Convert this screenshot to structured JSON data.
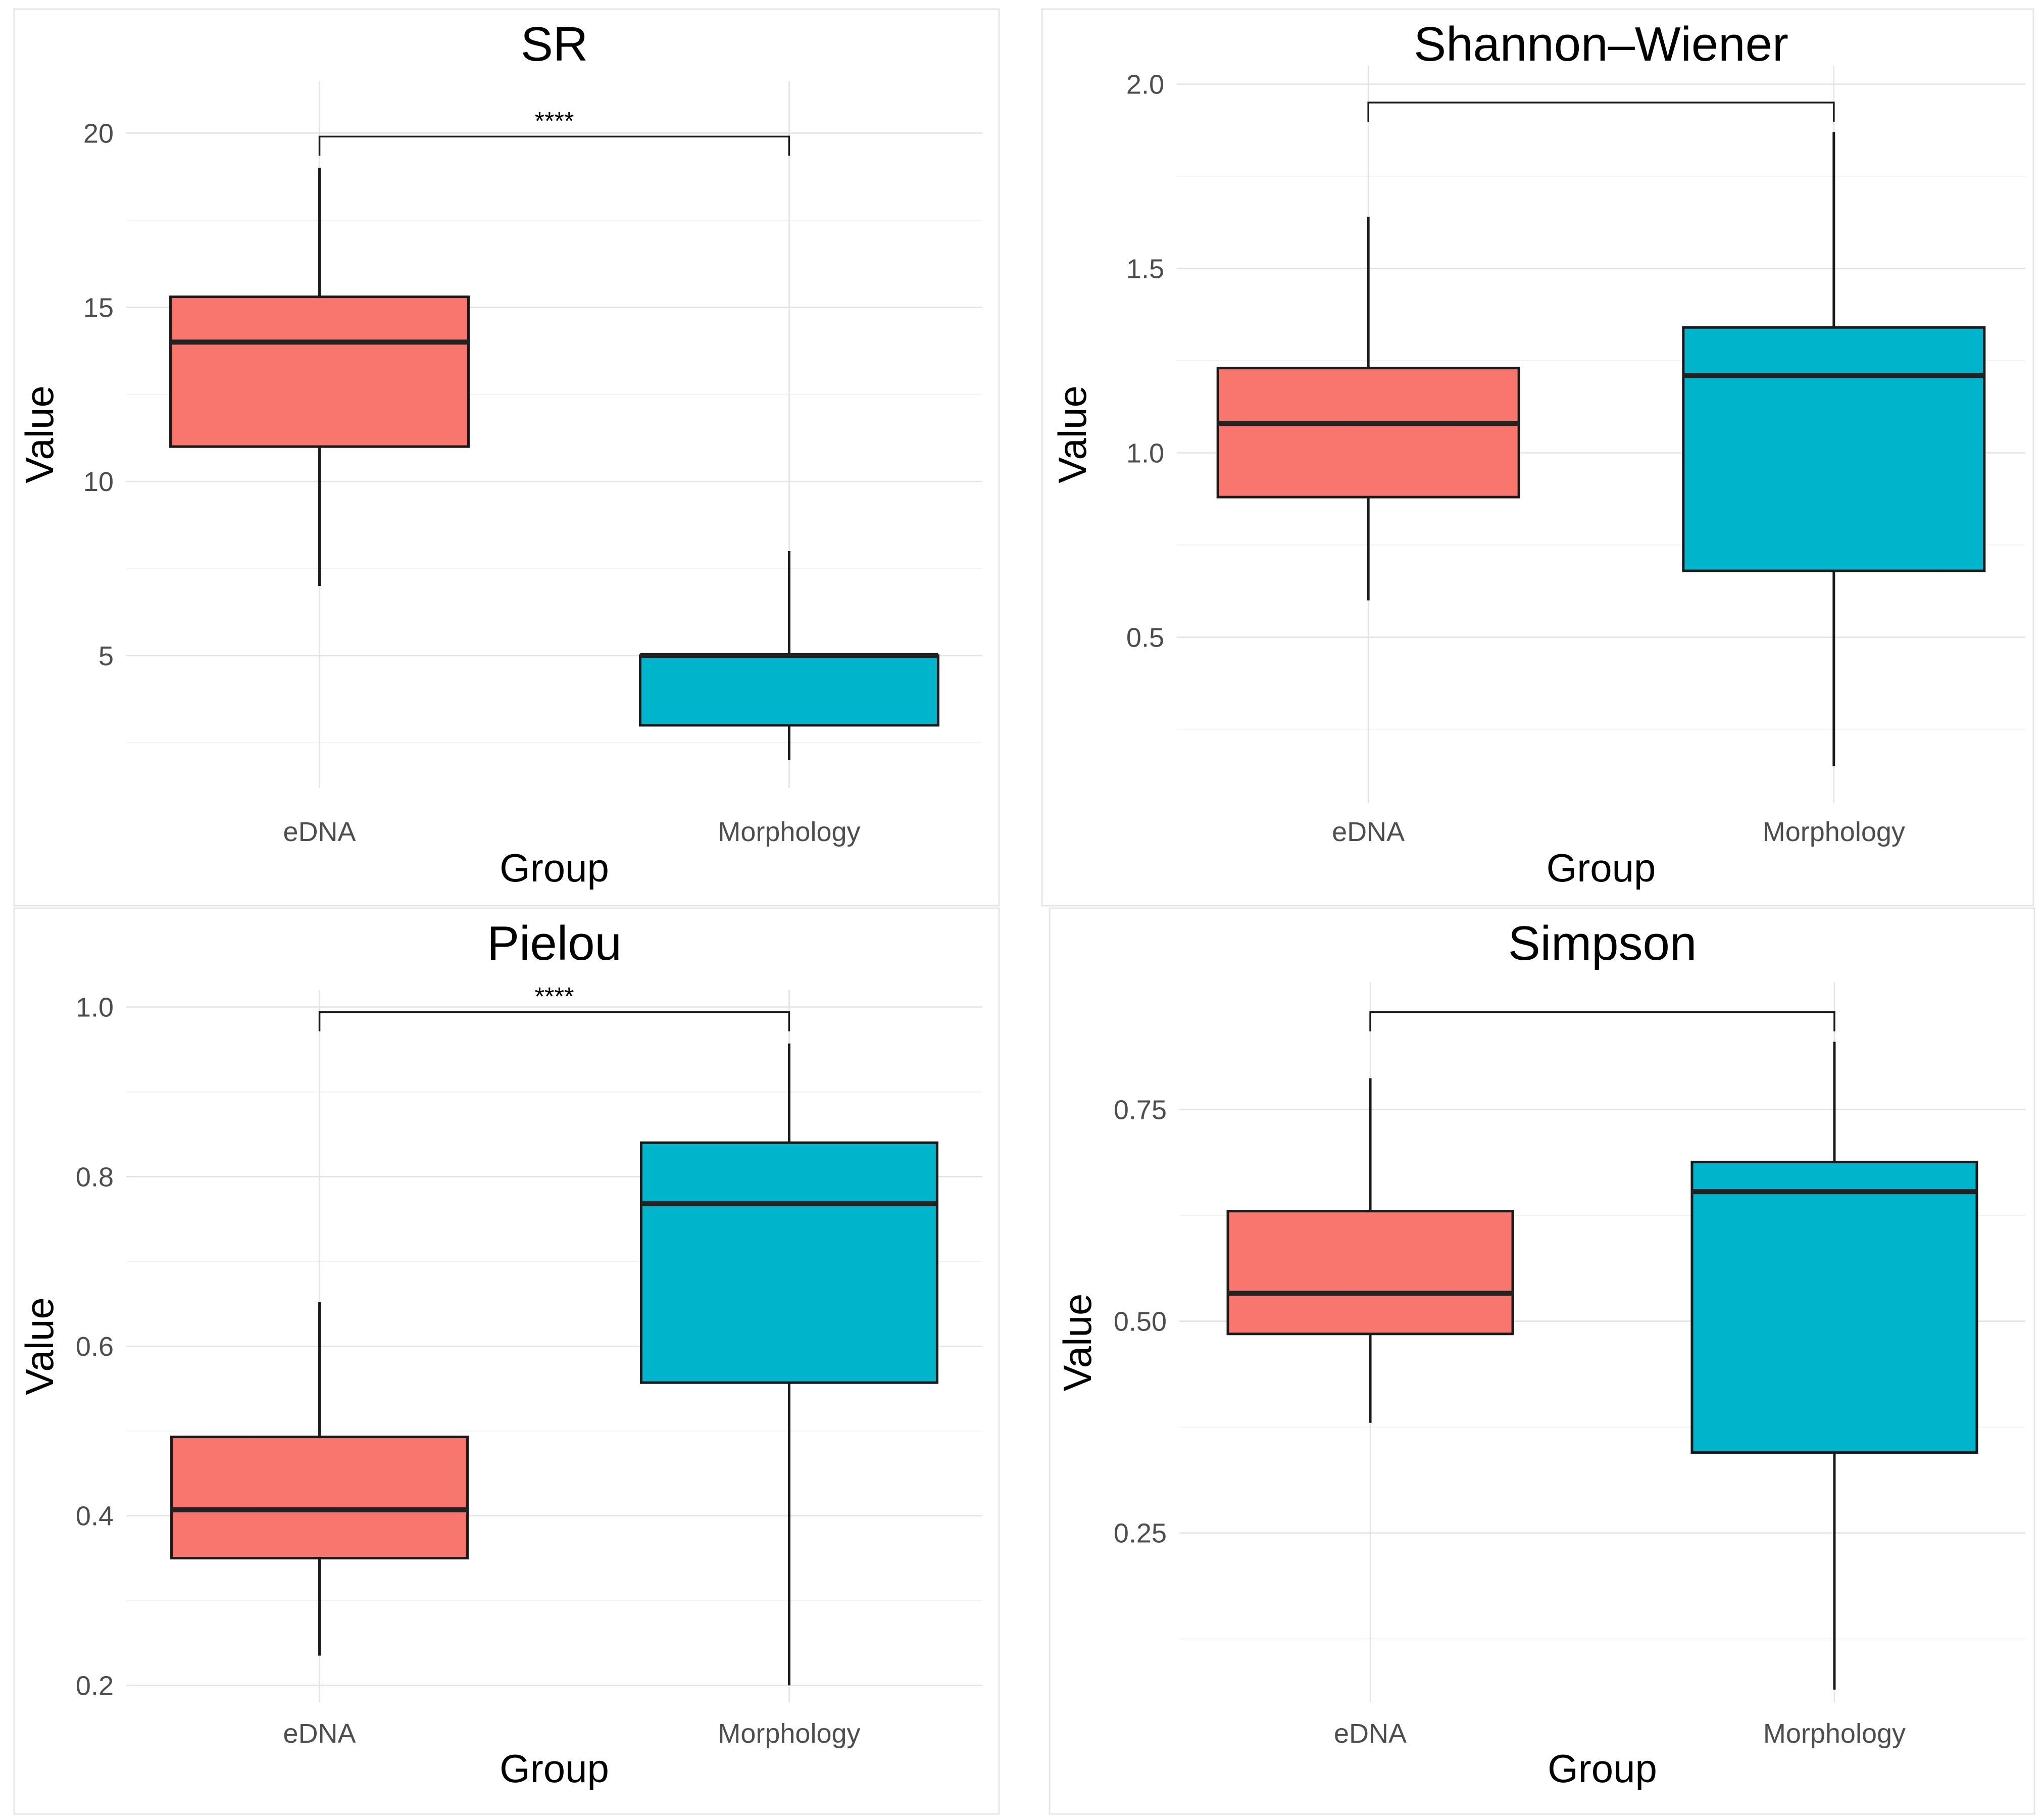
{
  "figure": {
    "colors": {
      "edna": "#f8766d",
      "morphology": "#00b4cc"
    }
  },
  "chart_data": [
    {
      "type": "boxplot",
      "title": "SR",
      "xlabel": "Group",
      "ylabel": "Value",
      "categories": [
        "eDNA",
        "Morphology"
      ],
      "ylim": [
        1.2,
        21.5
      ],
      "yticks": [
        5,
        10,
        15,
        20
      ],
      "yticklabels": [
        "5",
        "10",
        "15",
        "20"
      ],
      "minor_yticks": [
        2.5,
        7.5,
        12.5,
        17.5
      ],
      "boxes": [
        {
          "group": "eDNA",
          "min": 7,
          "q1": 11,
          "median": 14,
          "q3": 15.3,
          "max": 19
        },
        {
          "group": "Morphology",
          "min": 2,
          "q1": 3,
          "median": 5,
          "q3": 5,
          "max": 8
        }
      ],
      "comparison": {
        "level": 19.9,
        "label": "****"
      }
    },
    {
      "type": "boxplot",
      "title": "Shannon–Wiener",
      "xlabel": "Group",
      "ylabel": "Value",
      "categories": [
        "eDNA",
        "Morphology"
      ],
      "ylim": [
        0.05,
        2.05
      ],
      "yticks": [
        0.5,
        1.0,
        1.5,
        2.0
      ],
      "yticklabels": [
        "0.5",
        "1.0",
        "1.5",
        "2.0"
      ],
      "minor_yticks": [
        0.25,
        0.75,
        1.25,
        1.75
      ],
      "boxes": [
        {
          "group": "eDNA",
          "min": 0.6,
          "q1": 0.88,
          "median": 1.08,
          "q3": 1.23,
          "max": 1.64
        },
        {
          "group": "Morphology",
          "min": 0.15,
          "q1": 0.68,
          "median": 1.21,
          "q3": 1.34,
          "max": 1.87
        }
      ],
      "comparison": {
        "level": 1.95,
        "label": ""
      }
    },
    {
      "type": "boxplot",
      "title": "Pielou",
      "xlabel": "Group",
      "ylabel": "Value",
      "categories": [
        "eDNA",
        "Morphology"
      ],
      "ylim": [
        0.18,
        1.02
      ],
      "yticks": [
        0.2,
        0.4,
        0.6,
        0.8,
        1.0
      ],
      "yticklabels": [
        "0.2",
        "0.4",
        "0.6",
        "0.8",
        "1.0"
      ],
      "minor_yticks": [
        0.3,
        0.5,
        0.7,
        0.9
      ],
      "boxes": [
        {
          "group": "eDNA",
          "min": 0.235,
          "q1": 0.35,
          "median": 0.407,
          "q3": 0.493,
          "max": 0.652
        },
        {
          "group": "Morphology",
          "min": 0.2,
          "q1": 0.557,
          "median": 0.768,
          "q3": 0.84,
          "max": 0.957
        }
      ],
      "comparison": {
        "level": 0.994,
        "label": "****"
      }
    },
    {
      "type": "boxplot",
      "title": "Simpson",
      "xlabel": "Group",
      "ylabel": "Value",
      "categories": [
        "eDNA",
        "Morphology"
      ],
      "ylim": [
        0.05,
        0.9
      ],
      "yticks": [
        0.25,
        0.5,
        0.75
      ],
      "yticklabels": [
        "0.25",
        "0.50",
        "0.75"
      ],
      "minor_yticks": [
        0.125,
        0.375,
        0.625
      ],
      "boxes": [
        {
          "group": "eDNA",
          "min": 0.38,
          "q1": 0.485,
          "median": 0.533,
          "q3": 0.63,
          "max": 0.787
        },
        {
          "group": "Morphology",
          "min": 0.065,
          "q1": 0.345,
          "median": 0.653,
          "q3": 0.688,
          "max": 0.83
        }
      ],
      "comparison": {
        "level": 0.865,
        "label": ""
      }
    }
  ]
}
